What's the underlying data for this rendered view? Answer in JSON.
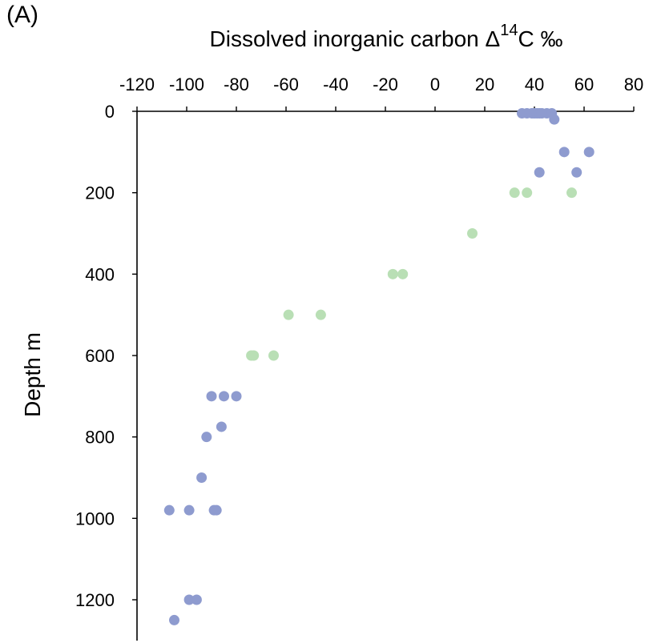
{
  "panel_label": "(A)",
  "chart_data": {
    "type": "scatter",
    "title": "",
    "xlabel": {
      "prefix": "Dissolved inorganic carbon Δ",
      "superscript": "14",
      "suffix": "C ‰"
    },
    "ylabel": "Depth m",
    "xlim": [
      -120,
      80
    ],
    "ylim": [
      0,
      1290
    ],
    "y_inverted": true,
    "x_axis_position": "top",
    "xticks": [
      -120,
      -100,
      -80,
      -60,
      -40,
      -20,
      0,
      20,
      40,
      60,
      80
    ],
    "yticks": [
      0,
      200,
      400,
      600,
      800,
      1000,
      1200
    ],
    "grid": false,
    "legend": "none",
    "series": [
      {
        "color": "#8e9bcf",
        "points": [
          [
            35,
            5
          ],
          [
            37,
            5
          ],
          [
            39,
            5
          ],
          [
            40,
            5
          ],
          [
            41,
            5
          ],
          [
            42,
            5
          ],
          [
            43,
            5
          ],
          [
            45,
            5
          ],
          [
            47,
            5
          ],
          [
            48,
            20
          ],
          [
            52,
            100
          ],
          [
            62,
            100
          ],
          [
            42,
            150
          ],
          [
            57,
            150
          ],
          [
            -90,
            700
          ],
          [
            -85,
            700
          ],
          [
            -80,
            700
          ],
          [
            -86,
            775
          ],
          [
            -92,
            800
          ],
          [
            -94,
            900
          ],
          [
            -107,
            980
          ],
          [
            -99,
            980
          ],
          [
            -89,
            980
          ],
          [
            -88,
            980
          ],
          [
            -99,
            1200
          ],
          [
            -96,
            1200
          ],
          [
            -105,
            1250
          ]
        ]
      },
      {
        "color": "#b9dfb5",
        "points": [
          [
            32,
            200
          ],
          [
            37,
            200
          ],
          [
            55,
            200
          ],
          [
            15,
            300
          ],
          [
            -17,
            400
          ],
          [
            -13,
            400
          ],
          [
            -59,
            500
          ],
          [
            -46,
            500
          ],
          [
            -74,
            600
          ],
          [
            -73,
            600
          ],
          [
            -65,
            600
          ]
        ]
      }
    ]
  }
}
